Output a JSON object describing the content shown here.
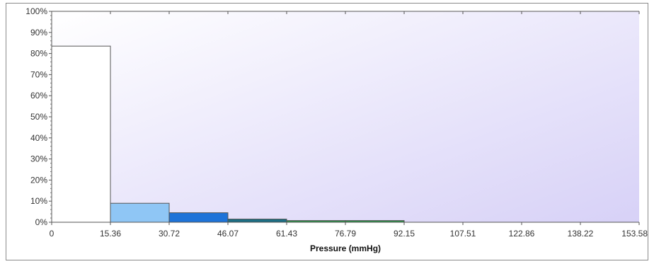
{
  "chart_data": {
    "type": "bar",
    "title": "",
    "xlabel": "Pressure (mmHg)",
    "ylabel": "",
    "x_ticks": [
      "0",
      "15.36",
      "30.72",
      "46.07",
      "61.43",
      "76.79",
      "92.15",
      "107.51",
      "122.86",
      "138.22",
      "153.58"
    ],
    "y_ticks": [
      "0%",
      "10%",
      "20%",
      "30%",
      "40%",
      "50%",
      "60%",
      "70%",
      "80%",
      "90%",
      "100%"
    ],
    "xlim": [
      0,
      153.58
    ],
    "ylim": [
      0,
      100
    ],
    "bins": [
      {
        "x0": 0,
        "x1": 15.36,
        "value": 83.5,
        "color": "#ffffff"
      },
      {
        "x0": 15.36,
        "x1": 30.72,
        "value": 9,
        "color": "#8fc6f5"
      },
      {
        "x0": 30.72,
        "x1": 46.07,
        "value": 4.5,
        "color": "#1e73d8"
      },
      {
        "x0": 46.07,
        "x1": 61.43,
        "value": 1.5,
        "color": "#1d6e84"
      },
      {
        "x0": 61.43,
        "x1": 76.79,
        "value": 0.8,
        "color": "#2e8f4a"
      },
      {
        "x0": 76.79,
        "x1": 92.15,
        "value": 0.8,
        "color": "#2e8f4a"
      }
    ],
    "grid": false,
    "legend": "none",
    "plot_background": [
      "#ffffff",
      "#d7d1f7"
    ]
  }
}
